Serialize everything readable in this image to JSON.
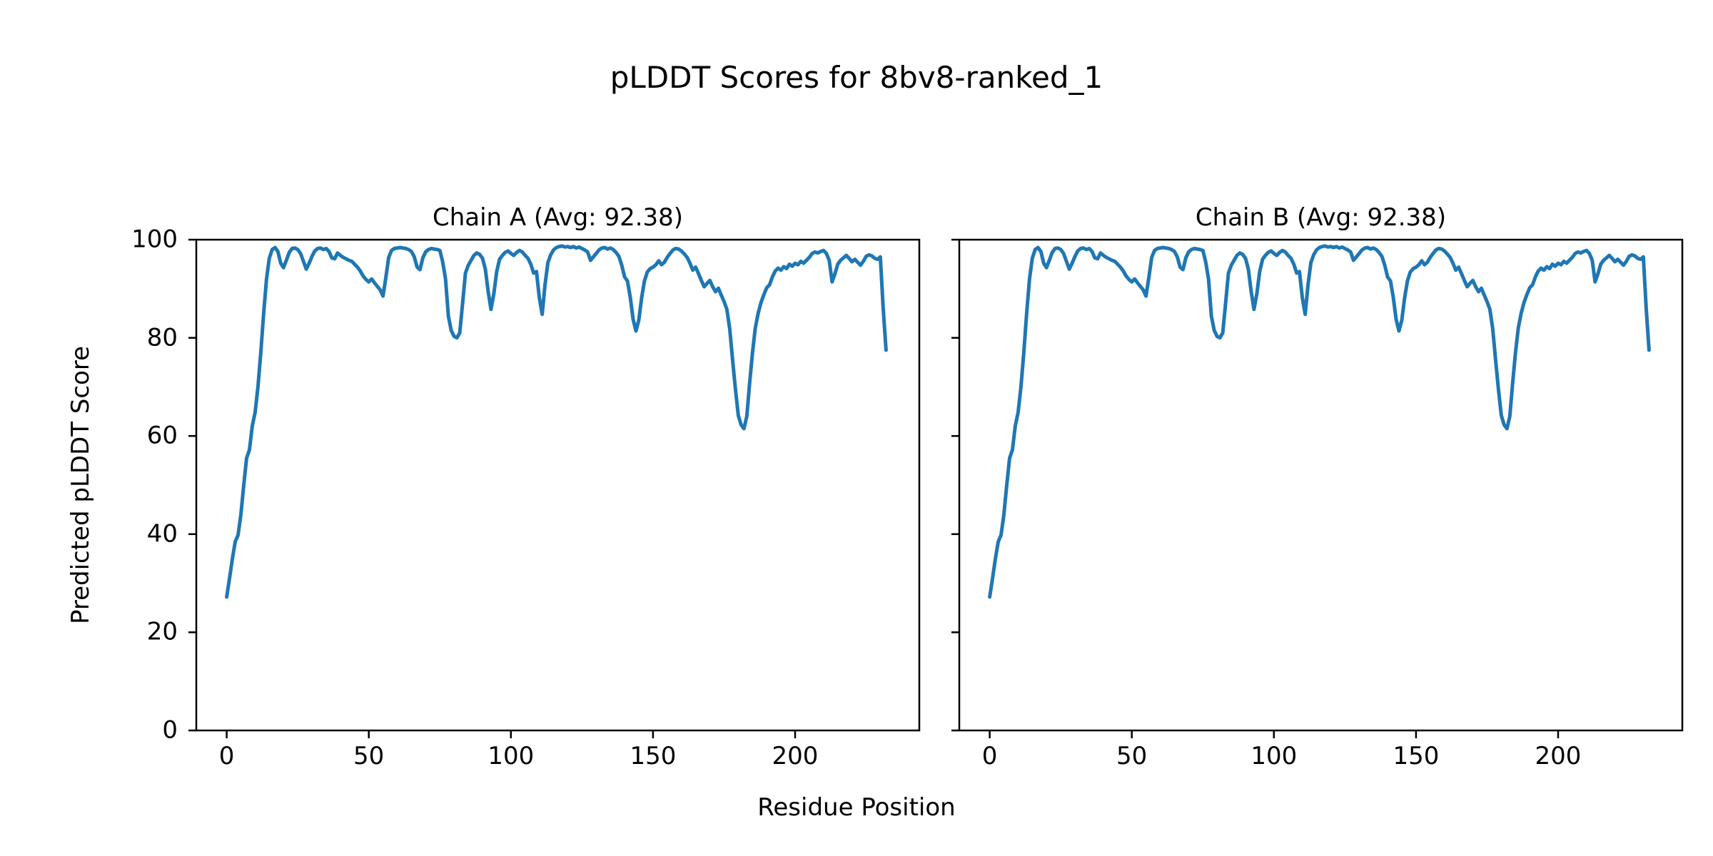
{
  "figure": {
    "title": "pLDDT Scores for 8bv8-ranked_1",
    "xlabel": "Residue Position",
    "ylabel": "Predicted pLDDT Score",
    "line_color": "#1f77b4",
    "background": "#ffffff"
  },
  "chart_data": [
    {
      "type": "line",
      "title": "Chain A (Avg: 92.38)",
      "chain": "A",
      "avg_plddt": 92.38,
      "x_start": 0,
      "xlim": [
        -10.7,
        243.7
      ],
      "ylim": [
        0,
        100
      ],
      "xticks": [
        0,
        50,
        100,
        150,
        200
      ],
      "yticks": [
        0,
        20,
        40,
        60,
        80,
        100
      ],
      "show_ytick_labels": true,
      "grid": false,
      "values": [
        27.2,
        31.0,
        35.0,
        38.5,
        39.8,
        44.0,
        50.0,
        55.5,
        57.2,
        62.0,
        64.8,
        70.0,
        77.0,
        85.0,
        92.0,
        96.2,
        98.0,
        98.4,
        97.6,
        95.2,
        94.3,
        95.8,
        97.4,
        98.2,
        98.3,
        98.0,
        97.2,
        95.6,
        94.0,
        95.2,
        96.6,
        97.7,
        98.2,
        98.3,
        98.0,
        98.2,
        97.6,
        96.3,
        96.1,
        97.3,
        96.8,
        96.4,
        96.1,
        95.8,
        95.6,
        95.0,
        94.4,
        93.6,
        92.6,
        91.9,
        91.4,
        92.0,
        91.2,
        90.5,
        89.8,
        88.5,
        92.3,
        96.4,
        97.8,
        98.2,
        98.3,
        98.4,
        98.3,
        98.2,
        98.0,
        97.6,
        96.5,
        94.4,
        93.9,
        96.3,
        97.5,
        98.0,
        98.2,
        98.1,
        98.0,
        97.8,
        95.5,
        92.0,
        84.4,
        81.5,
        80.3,
        80.0,
        81.0,
        87.0,
        93.2,
        94.8,
        95.8,
        96.8,
        97.3,
        97.0,
        96.2,
        94.0,
        89.5,
        85.8,
        89.0,
        93.5,
        96.0,
        96.8,
        97.4,
        97.7,
        97.2,
        96.8,
        97.4,
        97.8,
        97.5,
        96.8,
        96.2,
        95.0,
        93.2,
        93.5,
        88.2,
        84.8,
        90.8,
        95.3,
        96.9,
        97.9,
        98.4,
        98.6,
        98.7,
        98.5,
        98.6,
        98.4,
        98.6,
        98.3,
        98.5,
        98.2,
        97.9,
        97.5,
        95.8,
        96.5,
        97.2,
        97.9,
        98.3,
        98.4,
        98.1,
        98.3,
        98.0,
        97.4,
        96.6,
        94.8,
        92.4,
        91.6,
        88.3,
        83.8,
        81.4,
        83.6,
        88.2,
        91.6,
        93.4,
        94.1,
        94.4,
        94.9,
        95.7,
        94.9,
        95.4,
        96.4,
        97.2,
        97.9,
        98.2,
        98.1,
        97.7,
        97.1,
        96.4,
        95.2,
        93.8,
        94.4,
        93.1,
        91.7,
        90.4,
        91.1,
        91.7,
        90.4,
        89.4,
        90.1,
        88.7,
        87.4,
        85.8,
        81.8,
        75.5,
        69.5,
        64.2,
        62.3,
        61.5,
        64.0,
        70.8,
        77.0,
        82.0,
        85.0,
        87.2,
        88.8,
        90.2,
        90.8,
        92.4,
        93.6,
        94.2,
        93.8,
        94.5,
        94.1,
        95.0,
        94.6,
        95.2,
        94.9,
        95.6,
        95.2,
        95.8,
        96.4,
        97.2,
        97.5,
        97.3,
        97.6,
        97.8,
        97.2,
        95.8,
        91.4,
        93.0,
        95.0,
        95.8,
        96.3,
        96.8,
        96.2,
        95.5,
        96.0,
        95.4,
        94.8,
        95.6,
        96.6,
        96.9,
        96.7,
        96.2,
        96.0,
        96.5,
        86.0,
        77.5
      ]
    },
    {
      "type": "line",
      "title": "Chain B (Avg: 92.38)",
      "chain": "B",
      "avg_plddt": 92.38,
      "x_start": 0,
      "xlim": [
        -10.7,
        243.7
      ],
      "ylim": [
        0,
        100
      ],
      "xticks": [
        0,
        50,
        100,
        150,
        200
      ],
      "yticks": [
        0,
        20,
        40,
        60,
        80,
        100
      ],
      "show_ytick_labels": false,
      "grid": false,
      "values": [
        27.2,
        31.0,
        35.0,
        38.5,
        39.8,
        44.0,
        50.0,
        55.5,
        57.2,
        62.0,
        64.8,
        70.0,
        77.0,
        85.0,
        92.0,
        96.2,
        98.0,
        98.4,
        97.6,
        95.2,
        94.3,
        95.8,
        97.4,
        98.2,
        98.3,
        98.0,
        97.2,
        95.6,
        94.0,
        95.2,
        96.6,
        97.7,
        98.2,
        98.3,
        98.0,
        98.2,
        97.6,
        96.3,
        96.1,
        97.3,
        96.8,
        96.4,
        96.1,
        95.8,
        95.6,
        95.0,
        94.4,
        93.6,
        92.6,
        91.9,
        91.4,
        92.0,
        91.2,
        90.5,
        89.8,
        88.5,
        92.3,
        96.4,
        97.8,
        98.2,
        98.3,
        98.4,
        98.3,
        98.2,
        98.0,
        97.6,
        96.5,
        94.4,
        93.9,
        96.3,
        97.5,
        98.0,
        98.2,
        98.1,
        98.0,
        97.8,
        95.5,
        92.0,
        84.4,
        81.5,
        80.3,
        80.0,
        81.0,
        87.0,
        93.2,
        94.8,
        95.8,
        96.8,
        97.3,
        97.0,
        96.2,
        94.0,
        89.5,
        85.8,
        89.0,
        93.5,
        96.0,
        96.8,
        97.4,
        97.7,
        97.2,
        96.8,
        97.4,
        97.8,
        97.5,
        96.8,
        96.2,
        95.0,
        93.2,
        93.5,
        88.2,
        84.8,
        90.8,
        95.3,
        96.9,
        97.9,
        98.4,
        98.6,
        98.7,
        98.5,
        98.6,
        98.4,
        98.6,
        98.3,
        98.5,
        98.2,
        97.9,
        97.5,
        95.8,
        96.5,
        97.2,
        97.9,
        98.3,
        98.4,
        98.1,
        98.3,
        98.0,
        97.4,
        96.6,
        94.8,
        92.4,
        91.6,
        88.3,
        83.8,
        81.4,
        83.6,
        88.2,
        91.6,
        93.4,
        94.1,
        94.4,
        94.9,
        95.7,
        94.9,
        95.4,
        96.4,
        97.2,
        97.9,
        98.2,
        98.1,
        97.7,
        97.1,
        96.4,
        95.2,
        93.8,
        94.4,
        93.1,
        91.7,
        90.4,
        91.1,
        91.7,
        90.4,
        89.4,
        90.1,
        88.7,
        87.4,
        85.8,
        81.8,
        75.5,
        69.5,
        64.2,
        62.3,
        61.5,
        64.0,
        70.8,
        77.0,
        82.0,
        85.0,
        87.2,
        88.8,
        90.2,
        90.8,
        92.4,
        93.6,
        94.2,
        93.8,
        94.5,
        94.1,
        95.0,
        94.6,
        95.2,
        94.9,
        95.6,
        95.2,
        95.8,
        96.4,
        97.2,
        97.5,
        97.3,
        97.6,
        97.8,
        97.2,
        95.8,
        91.4,
        93.0,
        95.0,
        95.8,
        96.3,
        96.8,
        96.2,
        95.5,
        96.0,
        95.4,
        94.8,
        95.6,
        96.6,
        96.9,
        96.7,
        96.2,
        96.0,
        96.5,
        86.0,
        77.5
      ]
    }
  ]
}
